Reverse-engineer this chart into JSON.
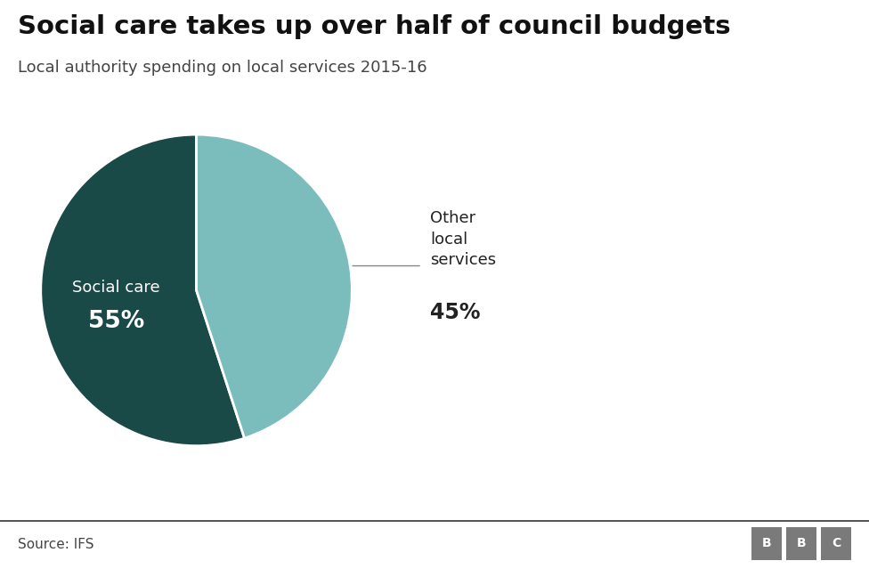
{
  "title": "Social care takes up over half of council budgets",
  "subtitle": "Local authority spending on local services 2015-16",
  "source": "Source: IFS",
  "slices": [
    55,
    45
  ],
  "colors": [
    "#1a4a47",
    "#7bbcbc"
  ],
  "bg_color": "#ffffff",
  "title_fontsize": 21,
  "subtitle_fontsize": 13,
  "social_care_label": "Social care",
  "social_care_pct": "55%",
  "other_label": "Other\nlocal\nservices",
  "other_pct": "45%",
  "label_inside_color": "#ffffff",
  "label_outside_color": "#222222",
  "source_text": "Source: IFS",
  "bbc_color": "#7a7a7a",
  "line_color": "#888888",
  "separator_color": "#333333"
}
